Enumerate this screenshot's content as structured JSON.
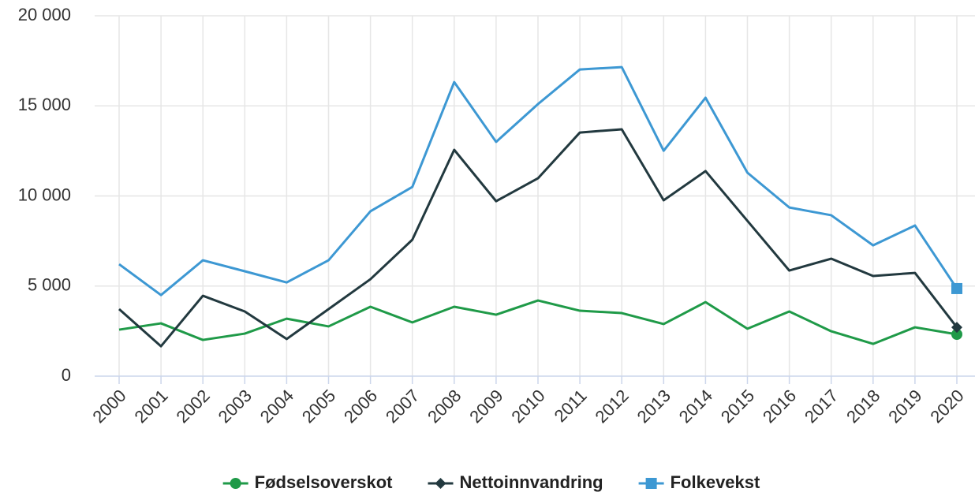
{
  "chart_data": {
    "type": "line",
    "categories": [
      "2000",
      "2001",
      "2002",
      "2003",
      "2004",
      "2005",
      "2006",
      "2007",
      "2008",
      "2009",
      "2010",
      "2011",
      "2012",
      "2013",
      "2014",
      "2015",
      "2016",
      "2017",
      "2018",
      "2019",
      "2020"
    ],
    "series": [
      {
        "name": "Fødselsoverskot",
        "color": "#1f9a48",
        "marker": "circle",
        "values": [
          2580,
          2930,
          2010,
          2360,
          3190,
          2760,
          3850,
          2980,
          3850,
          3410,
          4200,
          3630,
          3500,
          2890,
          4110,
          2630,
          3590,
          2490,
          1790,
          2710,
          2320
        ]
      },
      {
        "name": "Nettoinnvandring",
        "color": "#22393f",
        "marker": "diamond",
        "values": [
          3720,
          1660,
          4460,
          3590,
          2060,
          3720,
          5380,
          7570,
          12560,
          9710,
          10980,
          13520,
          13700,
          9760,
          11380,
          8620,
          5860,
          6520,
          5560,
          5730,
          2710
        ]
      },
      {
        "name": "Folkevekst",
        "color": "#3d98d3",
        "marker": "square",
        "values": [
          6210,
          4500,
          6430,
          5820,
          5200,
          6430,
          9150,
          10500,
          16320,
          13000,
          15100,
          17020,
          17150,
          12510,
          15450,
          11290,
          9360,
          8930,
          7260,
          8360,
          4860
        ]
      }
    ],
    "ylim": [
      0,
      20000
    ],
    "yticks": [
      0,
      {
        "value": 5000,
        "label": "5 000"
      },
      {
        "value": 10000,
        "label": "10 000"
      },
      {
        "value": 15000,
        "label": "15 000"
      },
      {
        "value": 20000,
        "label": "20 000"
      }
    ],
    "grid": true,
    "legend": "bottom"
  }
}
